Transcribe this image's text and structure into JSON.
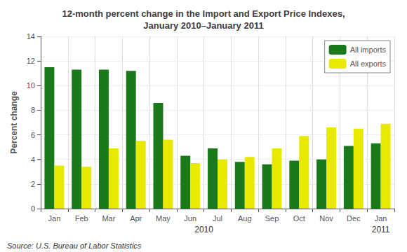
{
  "chart_data": {
    "type": "bar",
    "title": "12-month percent change in the Import and Export Price Indexes,\nJanuary 2010–January 2011",
    "y_label": "Percent change",
    "categories": [
      "Jan",
      "Feb",
      "Mar",
      "Apr",
      "May",
      "Jun",
      "Jul",
      "Aug",
      "Sep",
      "Oct",
      "Nov",
      "Dec",
      "Jan"
    ],
    "series": [
      {
        "name": "All imports",
        "color": "#1a7a1a",
        "values": [
          11.5,
          11.3,
          11.3,
          11.2,
          8.6,
          4.3,
          4.9,
          3.8,
          3.6,
          3.9,
          4.0,
          5.1,
          5.3
        ]
      },
      {
        "name": "All exports",
        "color": "#e8e800",
        "values": [
          3.5,
          3.4,
          4.9,
          5.5,
          5.6,
          3.7,
          4.0,
          4.2,
          4.9,
          5.9,
          6.6,
          6.5,
          6.9
        ]
      }
    ],
    "ylim": [
      0,
      14
    ],
    "yticks": [
      0,
      2,
      4,
      6,
      8,
      10,
      12,
      14
    ],
    "grid": true,
    "legend": "upper right",
    "annotations": [
      "2010",
      "2011"
    ],
    "source": "Source: U.S. Bureau of Labor Statistics"
  }
}
